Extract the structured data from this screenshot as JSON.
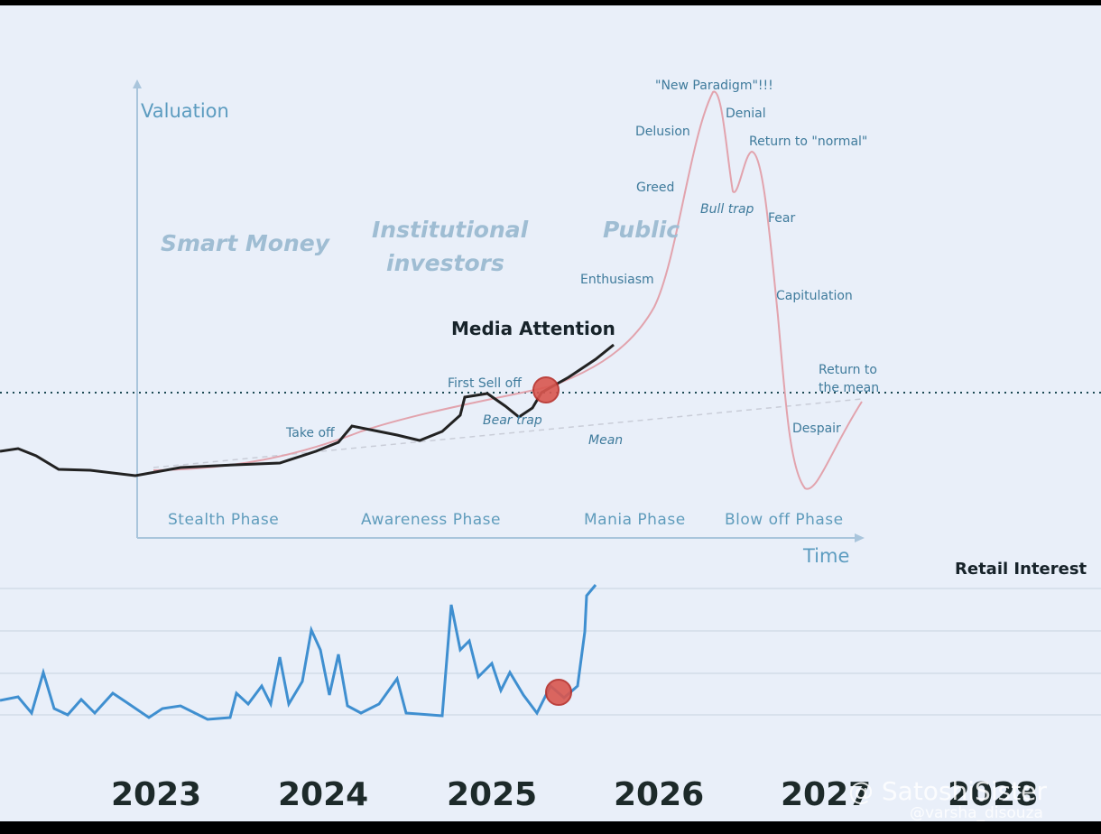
{
  "diagram": {
    "axes": {
      "y_label": "Valuation",
      "x_label": "Time"
    },
    "groups": [
      "Smart Money",
      "Institutional",
      "investors",
      "Public"
    ],
    "headline": "Media Attention",
    "annotations": [
      "Take off",
      "First Sell off",
      "Bear trap",
      "Mean",
      "Enthusiasm",
      "Greed",
      "Delusion",
      "\"New Paradigm\"!!!",
      "Denial",
      "Return to \"normal\"",
      "Bull trap",
      "Fear",
      "Capitulation",
      "Return to",
      "the mean",
      "Despair"
    ],
    "phases": [
      "Stealth Phase",
      "Awareness Phase",
      "Mania Phase",
      "Blow off Phase"
    ],
    "retail_title": "Retail Interest",
    "years": [
      "2023",
      "2024",
      "2025",
      "2026",
      "2027",
      "2028"
    ],
    "watermark": [
      "@ SatoshiSister",
      "@varsha_disouza"
    ]
  }
}
